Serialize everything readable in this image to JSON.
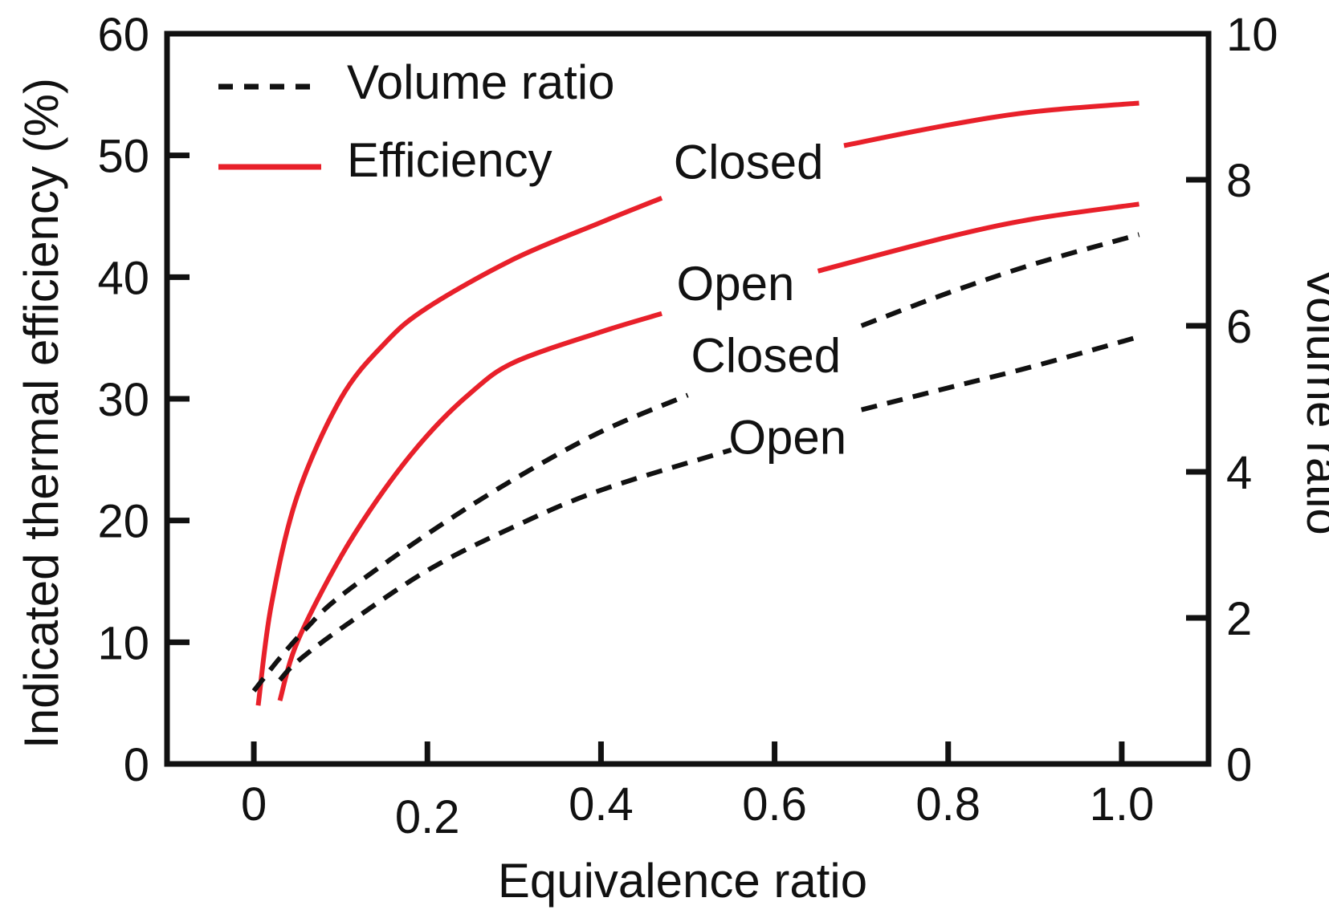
{
  "chart_data": {
    "type": "line",
    "xlabel": "Equivalence ratio",
    "ylabel": "Indicated thermal efficiency (%)",
    "y2label": "Volume ratio",
    "xlim": [
      -0.1,
      1.1
    ],
    "ylim": [
      0,
      60
    ],
    "y2lim": [
      0,
      10
    ],
    "x_ticks": [
      {
        "value": 0,
        "label": "0"
      },
      {
        "value": 0.2,
        "label": "0.2"
      },
      {
        "value": 0.4,
        "label": "0.4"
      },
      {
        "value": 0.6,
        "label": "0.6"
      },
      {
        "value": 0.8,
        "label": "0.8"
      },
      {
        "value": 1.0,
        "label": "1.0"
      }
    ],
    "y_ticks": [
      {
        "value": 0,
        "label": "0"
      },
      {
        "value": 10,
        "label": "10"
      },
      {
        "value": 20,
        "label": "20"
      },
      {
        "value": 30,
        "label": "30"
      },
      {
        "value": 40,
        "label": "40"
      },
      {
        "value": 50,
        "label": "50"
      },
      {
        "value": 60,
        "label": "60"
      }
    ],
    "y2_ticks": [
      {
        "value": 0,
        "label": "0"
      },
      {
        "value": 2,
        "label": "2"
      },
      {
        "value": 4,
        "label": "4"
      },
      {
        "value": 6,
        "label": "6"
      },
      {
        "value": 8,
        "label": "8"
      },
      {
        "value": 10,
        "label": "10"
      }
    ],
    "legend": [
      {
        "label": "Volume ratio",
        "style": "dashed",
        "color": "#111111"
      },
      {
        "label": "Efficiency",
        "style": "solid",
        "color": "#e8202a"
      }
    ],
    "series": [
      {
        "name": "Efficiency - Closed",
        "label": "Closed",
        "axis": "left",
        "style": "solid",
        "color": "#e8202a",
        "x": [
          0.005,
          0.02,
          0.05,
          0.1,
          0.15,
          0.2,
          0.3,
          0.4,
          0.47,
          0.68,
          0.8,
          0.9,
          1.02
        ],
        "y": [
          4.8,
          13,
          22,
          30,
          34.5,
          37.5,
          41.5,
          44.5,
          46.5,
          50.8,
          52.5,
          53.6,
          54.3
        ],
        "gap": [
          0.47,
          0.68
        ]
      },
      {
        "name": "Efficiency - Open",
        "label": "Open",
        "axis": "left",
        "style": "solid",
        "color": "#e8202a",
        "x": [
          0.03,
          0.05,
          0.1,
          0.15,
          0.2,
          0.25,
          0.3,
          0.4,
          0.47,
          0.65,
          0.8,
          0.9,
          1.02
        ],
        "y": [
          5.2,
          10,
          17,
          22.5,
          27,
          30.5,
          33,
          35.5,
          37,
          40.5,
          43.3,
          44.8,
          46
        ],
        "gap": [
          0.47,
          0.65
        ]
      },
      {
        "name": "Volume ratio - Closed",
        "label": "Closed",
        "axis": "right",
        "style": "dashed",
        "color": "#111111",
        "x": [
          0.0,
          0.03,
          0.06,
          0.1,
          0.2,
          0.3,
          0.4,
          0.5,
          0.7,
          0.8,
          0.9,
          1.02
        ],
        "y": [
          1.0,
          1.45,
          1.85,
          2.3,
          3.15,
          3.9,
          4.55,
          5.05,
          6.0,
          6.45,
          6.85,
          7.25
        ],
        "gap": [
          0.5,
          0.7
        ]
      },
      {
        "name": "Volume ratio - Open",
        "label": "Open",
        "axis": "right",
        "style": "dashed",
        "color": "#111111",
        "x": [
          0.03,
          0.05,
          0.1,
          0.2,
          0.3,
          0.4,
          0.55,
          0.7,
          0.8,
          0.9,
          1.02
        ],
        "y": [
          1.15,
          1.4,
          1.85,
          2.65,
          3.25,
          3.75,
          4.3,
          4.85,
          5.15,
          5.45,
          5.85
        ],
        "gap": [
          0.55,
          0.7
        ]
      }
    ]
  }
}
